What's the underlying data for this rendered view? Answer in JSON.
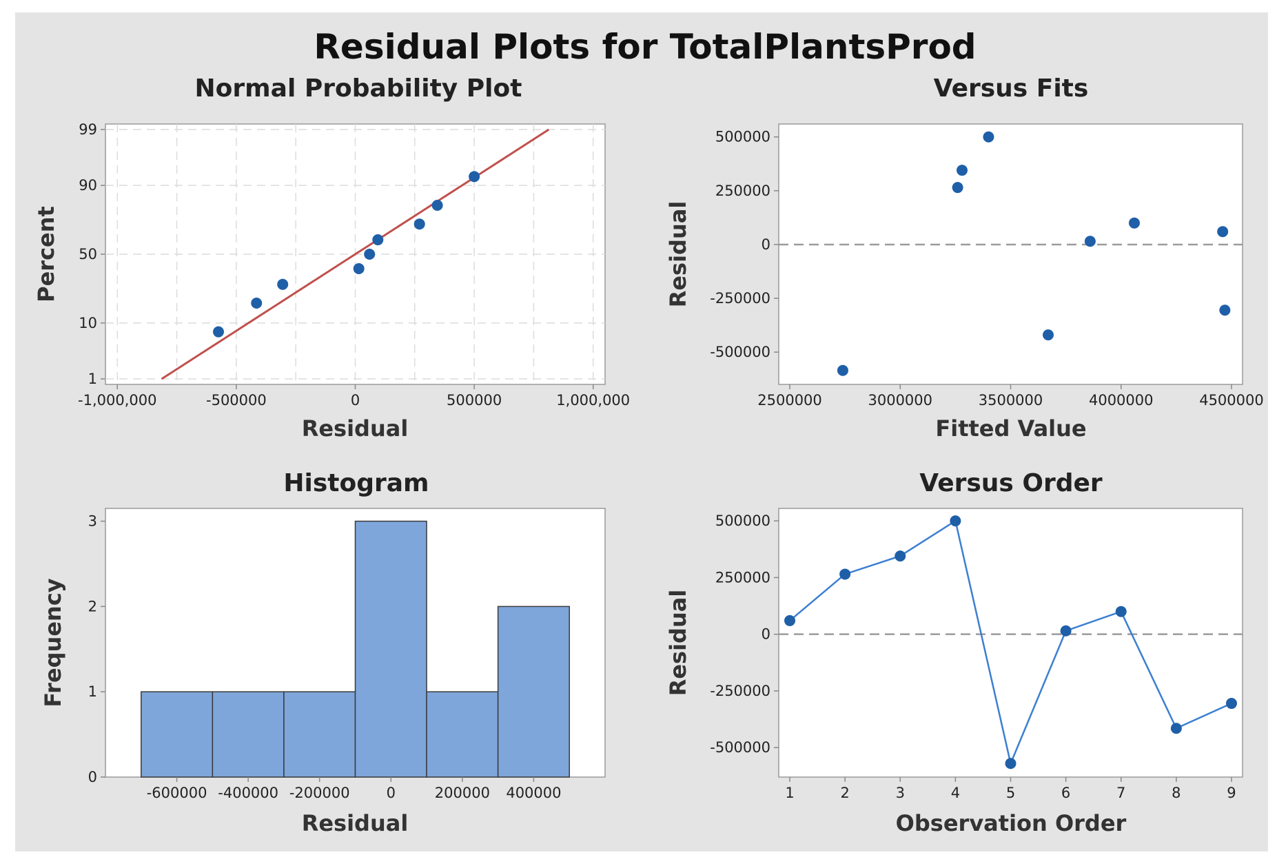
{
  "title": "Residual Plots for TotalPlantsProd",
  "colors": {
    "point": "#1f5fa8",
    "fit_line": "#c0504d",
    "bar_fill": "#7ea6db",
    "bar_stroke": "#3a3a3a",
    "line": "#3b7fd1"
  },
  "chart_data": [
    {
      "id": "normal",
      "type": "scatter",
      "title": "Normal Probability Plot",
      "xlabel": "Residual",
      "ylabel": "Percent",
      "xlim": [
        -1050000,
        1050000
      ],
      "ylim_percent": [
        1,
        99
      ],
      "xticks": [
        -1000000,
        -500000,
        0,
        500000,
        1000000
      ],
      "xtick_labels": [
        "-1,000,000",
        "-500000",
        "0",
        "500000",
        "1,000,000"
      ],
      "yticks": [
        1,
        10,
        50,
        90,
        99
      ],
      "ytick_labels": [
        "1",
        "10",
        "50",
        "90",
        "99"
      ],
      "xgrid": [
        -1000000,
        -750000,
        -500000,
        -250000,
        0,
        250000,
        500000,
        750000,
        1000000
      ],
      "ygrid": [
        1,
        10,
        50,
        90,
        99
      ],
      "fit_line": {
        "mean": 0,
        "sd": 350000
      },
      "points": [
        {
          "x": -575000,
          "y": 7.4
        },
        {
          "x": -415000,
          "y": 18.1
        },
        {
          "x": -305000,
          "y": 28.7
        },
        {
          "x": 15000,
          "y": 39.4
        },
        {
          "x": 60000,
          "y": 50
        },
        {
          "x": 95000,
          "y": 60.6
        },
        {
          "x": 270000,
          "y": 71.3
        },
        {
          "x": 345000,
          "y": 81.9
        },
        {
          "x": 500000,
          "y": 92.6
        }
      ]
    },
    {
      "id": "fits",
      "type": "scatter",
      "title": "Versus Fits",
      "xlabel": "Fitted Value",
      "ylabel": "Residual",
      "xlim": [
        2450000,
        4550000
      ],
      "ylim": [
        -650000,
        560000
      ],
      "xticks": [
        2500000,
        3000000,
        3500000,
        4000000,
        4500000
      ],
      "xtick_labels": [
        "2500000",
        "3000000",
        "3500000",
        "4000000",
        "4500000"
      ],
      "yticks": [
        500000,
        250000,
        0,
        -250000,
        -500000
      ],
      "ytick_labels": [
        "500000",
        "250000",
        "0",
        "-250000",
        "-500000"
      ],
      "refline": 0,
      "points": [
        {
          "x": 2740000,
          "y": -585000
        },
        {
          "x": 3260000,
          "y": 265000
        },
        {
          "x": 3280000,
          "y": 345000
        },
        {
          "x": 3400000,
          "y": 500000
        },
        {
          "x": 3670000,
          "y": -420000
        },
        {
          "x": 3860000,
          "y": 15000
        },
        {
          "x": 4060000,
          "y": 100000
        },
        {
          "x": 4460000,
          "y": 60000
        },
        {
          "x": 4470000,
          "y": -305000
        }
      ]
    },
    {
      "id": "hist",
      "type": "bar",
      "title": "Histogram",
      "xlabel": "Residual",
      "ylabel": "Frequency",
      "xlim": [
        -800000,
        600000
      ],
      "ylim": [
        0,
        3.15
      ],
      "xticks": [
        -600000,
        -400000,
        -200000,
        0,
        200000,
        400000
      ],
      "xtick_labels": [
        "-600000",
        "-400000",
        "-200000",
        "0",
        "200000",
        "400000"
      ],
      "yticks": [
        0,
        1,
        2,
        3
      ],
      "ytick_labels": [
        "0",
        "1",
        "2",
        "3"
      ],
      "bin_width": 200000,
      "bins": [
        {
          "center": -600000,
          "count": 1
        },
        {
          "center": -400000,
          "count": 1
        },
        {
          "center": -200000,
          "count": 1
        },
        {
          "center": 0,
          "count": 3
        },
        {
          "center": 200000,
          "count": 1
        },
        {
          "center": 400000,
          "count": 2
        }
      ]
    },
    {
      "id": "order",
      "type": "line",
      "title": "Versus Order",
      "xlabel": "Observation Order",
      "ylabel": "Residual",
      "xlim": [
        0.8,
        9.2
      ],
      "ylim": [
        -630000,
        555000
      ],
      "xticks": [
        1,
        2,
        3,
        4,
        5,
        6,
        7,
        8,
        9
      ],
      "xtick_labels": [
        "1",
        "2",
        "3",
        "4",
        "5",
        "6",
        "7",
        "8",
        "9"
      ],
      "yticks": [
        500000,
        250000,
        0,
        -250000,
        -500000
      ],
      "ytick_labels": [
        "500000",
        "250000",
        "0",
        "-250000",
        "-500000"
      ],
      "refline": 0,
      "x": [
        1,
        2,
        3,
        4,
        5,
        6,
        7,
        8,
        9
      ],
      "values": [
        60000,
        265000,
        345000,
        500000,
        -570000,
        15000,
        100000,
        -415000,
        -305000
      ]
    }
  ]
}
